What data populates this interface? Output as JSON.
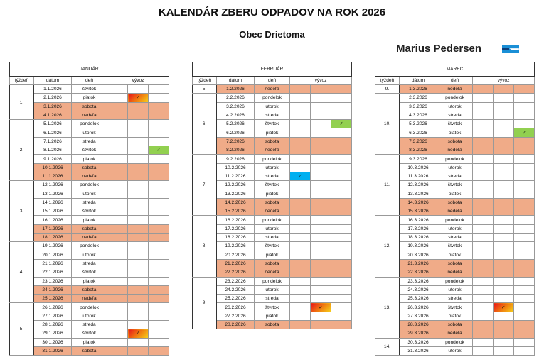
{
  "title": "KALENDÁR ZBERU ODPADOV NA ROK 2026",
  "subtitle": "Obec Drietoma",
  "brand": "Marius Pedersen",
  "headers": {
    "week": "týždeň",
    "date": "dátum",
    "day": "deň",
    "pickup": "vývoz"
  },
  "check_glyph": "✓",
  "colors": {
    "weekend": "#F0AB88",
    "green": "#92D050",
    "blue": "#00B0F0",
    "orange": "gradient red-yellow"
  },
  "months": [
    {
      "name": "JANUÁR",
      "weeks": [
        {
          "w": "1.",
          "days": [
            {
              "d": "1.1.2026",
              "n": "štvrtok"
            },
            {
              "d": "2.1.2026",
              "n": "piatok",
              "v": "orange"
            },
            {
              "d": "3.1.2026",
              "n": "sobota",
              "we": true
            },
            {
              "d": "4.1.2026",
              "n": "nedeľa",
              "we": true
            }
          ]
        },
        {
          "w": "2.",
          "days": [
            {
              "d": "5.1.2026",
              "n": "pondelok"
            },
            {
              "d": "6.1.2026",
              "n": "utorok"
            },
            {
              "d": "7.1.2026",
              "n": "streda"
            },
            {
              "d": "8.1.2026",
              "n": "štvrtok",
              "v": "green"
            },
            {
              "d": "9.1.2026",
              "n": "piatok"
            },
            {
              "d": "10.1.2026",
              "n": "sobota",
              "we": true
            },
            {
              "d": "11.1.2026",
              "n": "nedeľa",
              "we": true
            }
          ]
        },
        {
          "w": "3.",
          "days": [
            {
              "d": "12.1.2026",
              "n": "pondelok"
            },
            {
              "d": "13.1.2026",
              "n": "utorok"
            },
            {
              "d": "14.1.2026",
              "n": "streda"
            },
            {
              "d": "15.1.2026",
              "n": "štvrtok"
            },
            {
              "d": "16.1.2026",
              "n": "piatok"
            },
            {
              "d": "17.1.2026",
              "n": "sobota",
              "we": true
            },
            {
              "d": "18.1.2026",
              "n": "nedeľa",
              "we": true
            }
          ]
        },
        {
          "w": "4.",
          "days": [
            {
              "d": "19.1.2026",
              "n": "pondelok"
            },
            {
              "d": "20.1.2026",
              "n": "utorok"
            },
            {
              "d": "21.1.2026",
              "n": "streda"
            },
            {
              "d": "22.1.2026",
              "n": "štvrtok"
            },
            {
              "d": "23.1.2026",
              "n": "piatok"
            },
            {
              "d": "24.1.2026",
              "n": "sobota",
              "we": true
            },
            {
              "d": "25.1.2026",
              "n": "nedeľa",
              "we": true
            }
          ]
        },
        {
          "w": "5.",
          "days": [
            {
              "d": "26.1.2026",
              "n": "pondelok"
            },
            {
              "d": "27.1.2026",
              "n": "utorok"
            },
            {
              "d": "28.1.2026",
              "n": "streda"
            },
            {
              "d": "29.1.2026",
              "n": "štvrtok",
              "v": "orange"
            },
            {
              "d": "30.1.2026",
              "n": "piatok"
            },
            {
              "d": "31.1.2026",
              "n": "sobota",
              "we": true
            }
          ]
        }
      ]
    },
    {
      "name": "FEBRUÁR",
      "weeks": [
        {
          "w": "5.",
          "days": [
            {
              "d": "1.2.2026",
              "n": "nedeľa",
              "we": true
            }
          ]
        },
        {
          "w": "6.",
          "days": [
            {
              "d": "2.2.2026",
              "n": "pondelok"
            },
            {
              "d": "3.2.2026",
              "n": "utorok"
            },
            {
              "d": "4.2.2026",
              "n": "streda"
            },
            {
              "d": "5.2.2026",
              "n": "štvrtok",
              "v": "green"
            },
            {
              "d": "6.2.2026",
              "n": "piatok"
            },
            {
              "d": "7.2.2026",
              "n": "sobota",
              "we": true
            },
            {
              "d": "8.2.2026",
              "n": "nedeľa",
              "we": true
            }
          ]
        },
        {
          "w": "7.",
          "days": [
            {
              "d": "9.2.2026",
              "n": "pondelok"
            },
            {
              "d": "10.2.2026",
              "n": "utorok"
            },
            {
              "d": "11.2.2026",
              "n": "streda",
              "v": "blue"
            },
            {
              "d": "12.2.2026",
              "n": "štvrtok"
            },
            {
              "d": "13.2.2026",
              "n": "piatok"
            },
            {
              "d": "14.2.2026",
              "n": "sobota",
              "we": true
            },
            {
              "d": "15.2.2026",
              "n": "nedeľa",
              "we": true
            }
          ]
        },
        {
          "w": "8.",
          "days": [
            {
              "d": "16.2.2026",
              "n": "pondelok"
            },
            {
              "d": "17.2.2026",
              "n": "utorok"
            },
            {
              "d": "18.2.2026",
              "n": "streda"
            },
            {
              "d": "19.2.2026",
              "n": "štvrtok"
            },
            {
              "d": "20.2.2026",
              "n": "piatok"
            },
            {
              "d": "21.2.2026",
              "n": "sobota",
              "we": true
            },
            {
              "d": "22.2.2026",
              "n": "nedeľa",
              "we": true
            }
          ]
        },
        {
          "w": "9.",
          "days": [
            {
              "d": "23.2.2026",
              "n": "pondelok"
            },
            {
              "d": "24.2.2026",
              "n": "utorok"
            },
            {
              "d": "25.2.2026",
              "n": "streda"
            },
            {
              "d": "26.2.2026",
              "n": "štvrtok",
              "v": "orange"
            },
            {
              "d": "27.2.2026",
              "n": "piatok"
            },
            {
              "d": "28.2.2026",
              "n": "sobota",
              "we": true
            }
          ]
        }
      ]
    },
    {
      "name": "MAREC",
      "weeks": [
        {
          "w": "9.",
          "days": [
            {
              "d": "1.3.2026",
              "n": "nedeľa",
              "we": true
            }
          ]
        },
        {
          "w": "10.",
          "days": [
            {
              "d": "2.3.2026",
              "n": "pondelok"
            },
            {
              "d": "3.3.2026",
              "n": "utorok"
            },
            {
              "d": "4.3.2026",
              "n": "streda"
            },
            {
              "d": "5.3.2026",
              "n": "štvrtok"
            },
            {
              "d": "6.3.2026",
              "n": "piatok",
              "v": "green"
            },
            {
              "d": "7.3.2026",
              "n": "sobota",
              "we": true
            },
            {
              "d": "8.3.2026",
              "n": "nedeľa",
              "we": true
            }
          ]
        },
        {
          "w": "11.",
          "days": [
            {
              "d": "9.3.2026",
              "n": "pondelok"
            },
            {
              "d": "10.3.2026",
              "n": "utorok"
            },
            {
              "d": "11.3.2026",
              "n": "streda"
            },
            {
              "d": "12.3.2026",
              "n": "štvrtok"
            },
            {
              "d": "13.3.2026",
              "n": "piatok"
            },
            {
              "d": "14.3.2026",
              "n": "sobota",
              "we": true
            },
            {
              "d": "15.3.2026",
              "n": "nedeľa",
              "we": true
            }
          ]
        },
        {
          "w": "12.",
          "days": [
            {
              "d": "16.3.2026",
              "n": "pondelok"
            },
            {
              "d": "17.3.2026",
              "n": "utorok"
            },
            {
              "d": "18.3.2026",
              "n": "streda"
            },
            {
              "d": "19.3.2026",
              "n": "štvrtok"
            },
            {
              "d": "20.3.2026",
              "n": "piatok"
            },
            {
              "d": "21.3.2026",
              "n": "sobota",
              "we": true
            },
            {
              "d": "22.3.2026",
              "n": "nedeľa",
              "we": true
            }
          ]
        },
        {
          "w": "13.",
          "days": [
            {
              "d": "23.3.2026",
              "n": "pondelok"
            },
            {
              "d": "24.3.2026",
              "n": "utorok"
            },
            {
              "d": "25.3.2026",
              "n": "streda"
            },
            {
              "d": "26.3.2026",
              "n": "štvrtok",
              "v": "orange"
            },
            {
              "d": "27.3.2026",
              "n": "piatok"
            },
            {
              "d": "28.3.2026",
              "n": "sobota",
              "we": true
            },
            {
              "d": "29.3.2026",
              "n": "nedeľa",
              "we": true
            }
          ]
        },
        {
          "w": "14.",
          "days": [
            {
              "d": "30.3.2026",
              "n": "pondelok"
            },
            {
              "d": "31.3.2026",
              "n": "utorok"
            }
          ]
        }
      ]
    }
  ]
}
